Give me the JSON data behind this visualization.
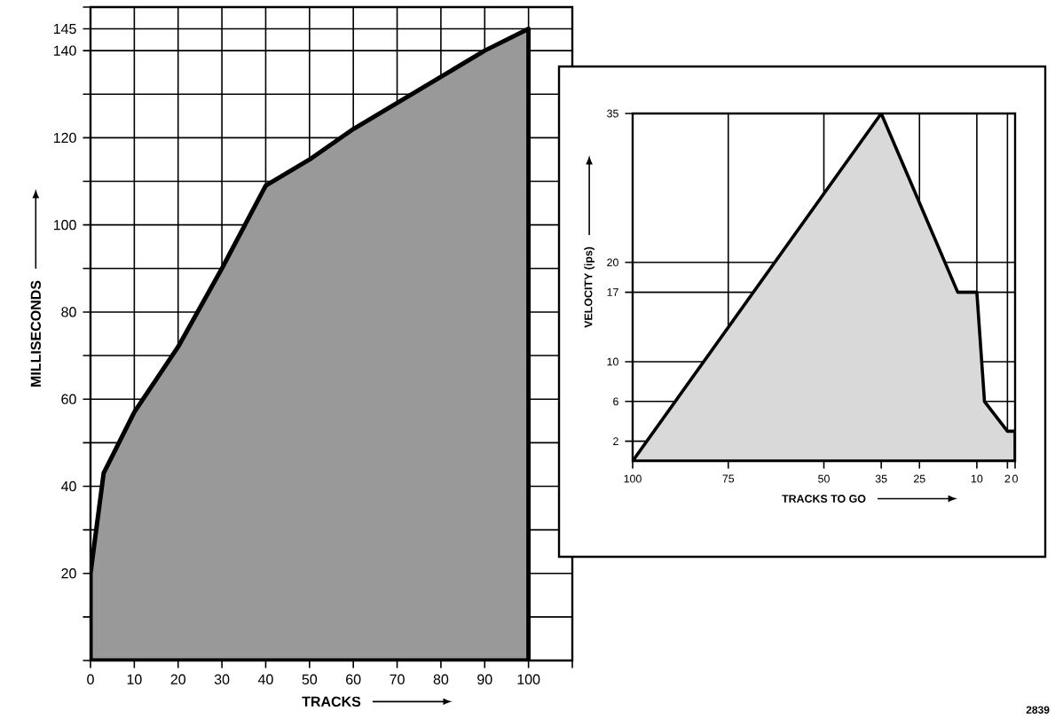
{
  "chart_data": [
    {
      "type": "area",
      "xlabel": "TRACKS",
      "ylabel": "MILLISECONDS",
      "x": [
        0,
        3,
        10,
        20,
        30,
        40,
        50,
        60,
        70,
        80,
        90,
        100
      ],
      "values": [
        20,
        43,
        57,
        72,
        90,
        109,
        115,
        122,
        128,
        134,
        140,
        145
      ],
      "color": "#999999",
      "xlim": [
        0,
        110
      ],
      "ylim": [
        0,
        150
      ],
      "xticks": [
        0,
        10,
        20,
        30,
        40,
        50,
        60,
        70,
        80,
        90,
        100,
        {
          "value": 110,
          "label": null
        }
      ],
      "yticks": [
        {
          "value": 0,
          "label": null
        },
        {
          "value": 10,
          "label": null
        },
        20,
        {
          "value": 30,
          "label": null
        },
        40,
        {
          "value": 50,
          "label": null
        },
        60,
        {
          "value": 70,
          "label": null
        },
        80,
        {
          "value": 90,
          "label": null
        },
        100,
        {
          "value": 110,
          "label": null
        },
        120,
        {
          "value": 130,
          "label": null
        },
        140,
        145,
        {
          "value": 150,
          "label": null
        }
      ],
      "grid": true,
      "annotations": [
        "2839"
      ]
    },
    {
      "type": "area",
      "xlabel": "TRACKS TO GO",
      "ylabel": "VELOCITY (ips)",
      "x": [
        100,
        35,
        15,
        10,
        8,
        2,
        0
      ],
      "values": [
        0,
        35,
        17,
        17,
        6,
        3,
        3
      ],
      "color": "#d9d9d9",
      "xlim": [
        100,
        0
      ],
      "ylim": [
        0,
        35
      ],
      "xticks": [
        100,
        75,
        50,
        35,
        25,
        10,
        2,
        0
      ],
      "yticks": [
        2,
        6,
        10,
        17,
        20,
        35
      ],
      "grid": true
    }
  ]
}
